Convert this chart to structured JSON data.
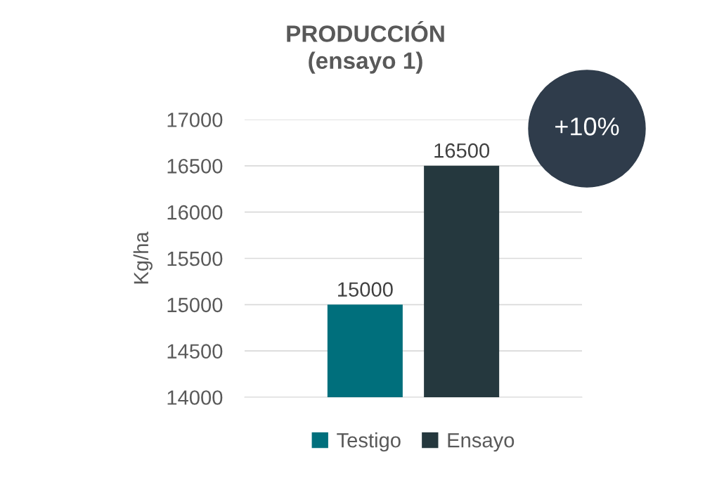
{
  "chart_data": {
    "type": "bar",
    "title": "PRODUCCIÓN\n(ensayo 1)",
    "ylabel": "Kg/ha",
    "categories": [
      null
    ],
    "series": [
      {
        "name": "Testigo",
        "color": "#006f7c",
        "values": [
          15000
        ]
      },
      {
        "name": "Ensayo",
        "color": "#25383e",
        "values": [
          16500
        ]
      }
    ],
    "ylim": [
      14000,
      17000
    ],
    "yticks": [
      14000,
      14500,
      15000,
      15500,
      16000,
      16500,
      17000
    ],
    "grid": "y",
    "legend": "bottom",
    "data_labels": true,
    "annotations": [
      "+10%"
    ]
  }
}
